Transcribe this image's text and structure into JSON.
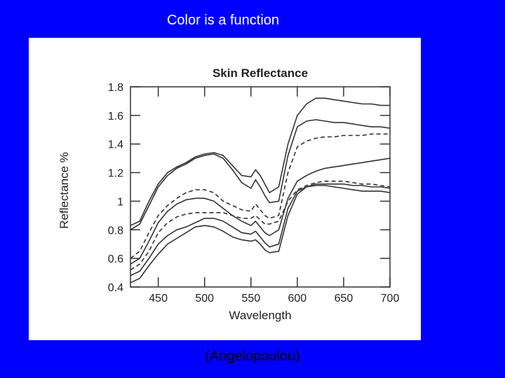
{
  "slide": {
    "title": "Color is a function",
    "caption": "(Angelopoulou)"
  },
  "colors": {
    "background": "#0000ff",
    "panel": "#ffffff",
    "line": "#333333",
    "text_white": "#ffffff"
  },
  "chart_data": {
    "type": "line",
    "title": "Skin Reflectance",
    "xlabel": "Wavelength",
    "ylabel": "Reflectance %",
    "xlim": [
      420,
      700
    ],
    "ylim": [
      0.4,
      1.8
    ],
    "xticks": [
      450,
      500,
      550,
      600,
      650,
      700
    ],
    "yticks": [
      0.4,
      0.6,
      0.8,
      1,
      1.2,
      1.4,
      1.6,
      1.8
    ],
    "ytick_labels": [
      "0.4",
      "0.6",
      "0.8",
      "1",
      "1.2",
      "1.4",
      "1.6",
      "1.8"
    ],
    "grid": false,
    "x": [
      420,
      430,
      440,
      450,
      460,
      470,
      480,
      490,
      500,
      510,
      520,
      530,
      540,
      550,
      555,
      560,
      565,
      570,
      580,
      590,
      600,
      610,
      620,
      630,
      640,
      650,
      660,
      670,
      680,
      690,
      700
    ],
    "series": [
      {
        "style": "solid",
        "values": [
          0.83,
          0.86,
          1.0,
          1.12,
          1.2,
          1.24,
          1.27,
          1.31,
          1.33,
          1.34,
          1.32,
          1.25,
          1.18,
          1.17,
          1.22,
          1.18,
          1.12,
          1.06,
          1.1,
          1.4,
          1.6,
          1.68,
          1.72,
          1.72,
          1.71,
          1.7,
          1.69,
          1.68,
          1.68,
          1.67,
          1.67
        ]
      },
      {
        "style": "solid",
        "values": [
          0.8,
          0.84,
          0.97,
          1.1,
          1.18,
          1.23,
          1.26,
          1.3,
          1.32,
          1.33,
          1.3,
          1.22,
          1.13,
          1.09,
          1.15,
          1.1,
          1.04,
          0.99,
          1.0,
          1.32,
          1.52,
          1.56,
          1.57,
          1.56,
          1.55,
          1.55,
          1.54,
          1.53,
          1.52,
          1.52,
          1.51
        ]
      },
      {
        "style": "dashed",
        "values": [
          0.6,
          0.65,
          0.78,
          0.9,
          0.97,
          1.02,
          1.06,
          1.08,
          1.08,
          1.06,
          1.0,
          0.97,
          0.94,
          0.93,
          0.98,
          0.94,
          0.9,
          0.88,
          0.9,
          1.2,
          1.38,
          1.42,
          1.44,
          1.45,
          1.45,
          1.46,
          1.46,
          1.46,
          1.47,
          1.47,
          1.47
        ]
      },
      {
        "style": "solid",
        "values": [
          0.56,
          0.6,
          0.72,
          0.85,
          0.93,
          0.98,
          1.01,
          1.02,
          1.02,
          1.0,
          0.95,
          0.9,
          0.86,
          0.83,
          0.86,
          0.82,
          0.78,
          0.76,
          0.8,
          1.02,
          1.14,
          1.18,
          1.21,
          1.23,
          1.24,
          1.25,
          1.26,
          1.27,
          1.28,
          1.29,
          1.3
        ]
      },
      {
        "style": "dashed",
        "values": [
          0.52,
          0.56,
          0.65,
          0.78,
          0.85,
          0.89,
          0.91,
          0.92,
          0.92,
          0.92,
          0.92,
          0.9,
          0.88,
          0.88,
          0.9,
          0.87,
          0.84,
          0.84,
          0.86,
          1.0,
          1.08,
          1.11,
          1.13,
          1.14,
          1.14,
          1.14,
          1.13,
          1.12,
          1.12,
          1.11,
          1.1
        ]
      },
      {
        "style": "solid",
        "values": [
          0.48,
          0.51,
          0.6,
          0.7,
          0.76,
          0.8,
          0.82,
          0.85,
          0.88,
          0.88,
          0.86,
          0.82,
          0.78,
          0.77,
          0.79,
          0.75,
          0.71,
          0.68,
          0.7,
          0.95,
          1.07,
          1.1,
          1.11,
          1.11,
          1.1,
          1.09,
          1.08,
          1.07,
          1.07,
          1.07,
          1.06
        ]
      },
      {
        "style": "solid",
        "values": [
          0.43,
          0.46,
          0.55,
          0.63,
          0.7,
          0.74,
          0.78,
          0.82,
          0.83,
          0.82,
          0.79,
          0.75,
          0.73,
          0.72,
          0.73,
          0.7,
          0.66,
          0.64,
          0.65,
          0.9,
          1.05,
          1.1,
          1.12,
          1.12,
          1.12,
          1.12,
          1.11,
          1.11,
          1.1,
          1.1,
          1.09
        ]
      }
    ]
  }
}
